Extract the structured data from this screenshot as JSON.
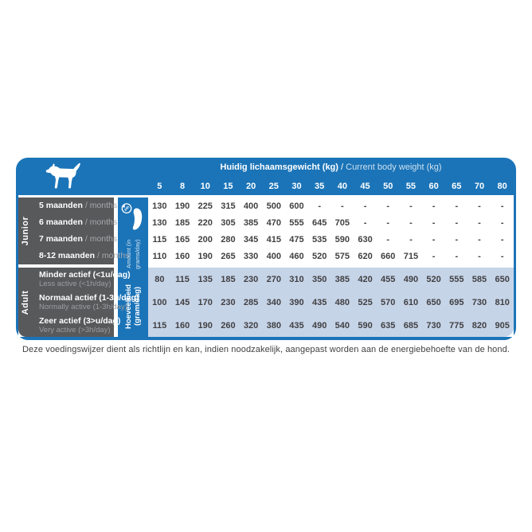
{
  "header": {
    "title_nl": "Huidig lichaamsgewicht (kg)",
    "title_sep": " / ",
    "title_en": "Current body weight (kg)"
  },
  "side": {
    "junior": "Junior",
    "adult": "Adult",
    "amount_nl": "Hoeveelheid (gram/dag)",
    "amount_en": "Amount (in grams/day)",
    "bowl_badge": "24h"
  },
  "chart_data": {
    "type": "table",
    "title": "Huidig lichaamsgewicht (kg) / Current body weight (kg)",
    "unit_label": "Hoeveelheid (gram/dag) / Amount (in grams/day)",
    "columns_kg": [
      "5",
      "8",
      "10",
      "15",
      "20",
      "25",
      "30",
      "35",
      "40",
      "45",
      "50",
      "55",
      "60",
      "65",
      "70",
      "80"
    ],
    "sections": [
      {
        "name": "Junior",
        "label_layout": "inline",
        "rows": [
          {
            "label": "5 maanden",
            "sublabel": "/ months",
            "values": [
              "130",
              "190",
              "225",
              "315",
              "400",
              "500",
              "600",
              "-",
              "-",
              "-",
              "-",
              "-",
              "-",
              "-",
              "-",
              "-"
            ]
          },
          {
            "label": "6 maanden",
            "sublabel": "/ months",
            "values": [
              "130",
              "185",
              "220",
              "305",
              "385",
              "470",
              "555",
              "645",
              "705",
              "-",
              "-",
              "-",
              "-",
              "-",
              "-",
              "-"
            ]
          },
          {
            "label": "7 maanden",
            "sublabel": "/ months",
            "values": [
              "115",
              "165",
              "200",
              "280",
              "345",
              "415",
              "475",
              "535",
              "590",
              "630",
              "-",
              "-",
              "-",
              "-",
              "-",
              "-"
            ]
          },
          {
            "label": "8-12 maanden",
            "sublabel": "/ months",
            "values": [
              "110",
              "160",
              "190",
              "265",
              "330",
              "400",
              "460",
              "520",
              "575",
              "620",
              "660",
              "715",
              "-",
              "-",
              "-",
              "-"
            ]
          }
        ]
      },
      {
        "name": "Adult",
        "label_layout": "stacked",
        "rows": [
          {
            "label": "Minder actief (<1u/dag)",
            "sublabel": "Less active (<1h/day)",
            "values": [
              "80",
              "115",
              "135",
              "185",
              "230",
              "270",
              "310",
              "350",
              "385",
              "420",
              "455",
              "490",
              "520",
              "555",
              "585",
              "650"
            ]
          },
          {
            "label": "Normaal actief (1-3u/dag)",
            "sublabel": "Normally active (1-3h/day)",
            "values": [
              "100",
              "145",
              "170",
              "230",
              "285",
              "340",
              "390",
              "435",
              "480",
              "525",
              "570",
              "610",
              "650",
              "695",
              "730",
              "810"
            ]
          },
          {
            "label": "Zeer actief (3>u/dag)",
            "sublabel": "Very active (>3h/day)",
            "values": [
              "115",
              "160",
              "190",
              "260",
              "320",
              "380",
              "435",
              "490",
              "540",
              "590",
              "635",
              "685",
              "730",
              "775",
              "820",
              "905"
            ]
          }
        ]
      }
    ]
  },
  "footer": "Deze voedingswijzer dient als richtlijn en kan, indien noodzakelijk, aangepast worden aan de energiebehoefte van de hond.",
  "colors": {
    "brand_blue": "#1b74b8",
    "light_blue": "#c6d4e8",
    "dark_gray": "#58595b",
    "text_dark": "#414042"
  }
}
